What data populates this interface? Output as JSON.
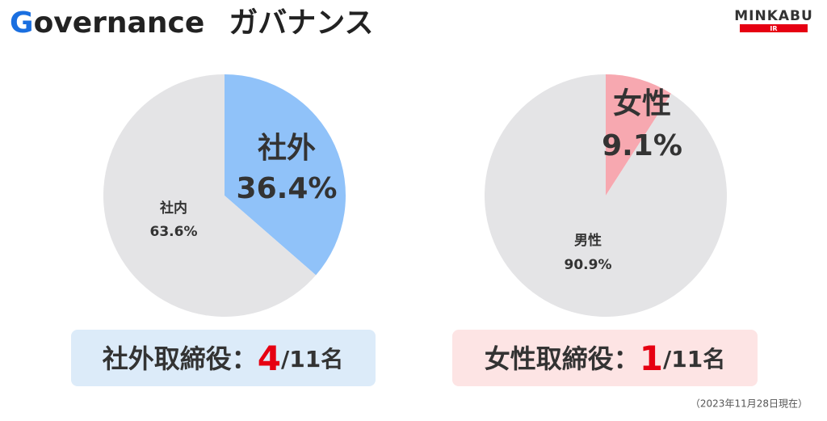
{
  "header": {
    "title_initial": "G",
    "title_rest": "overnance",
    "subtitle": "ガバナンス",
    "logo": "MINKABU",
    "logo_sub": "IR"
  },
  "chart_data": [
    {
      "type": "pie",
      "categories": [
        "社外",
        "社内"
      ],
      "values": [
        36.4,
        63.6
      ],
      "value_labels": [
        "36.4%",
        "63.6%"
      ],
      "colors": [
        "#90c2f9",
        "#e4e4e6"
      ],
      "caption": {
        "text": "社外取締役：",
        "count": 4,
        "unit": "/11名"
      }
    },
    {
      "type": "pie",
      "categories": [
        "女性",
        "男性"
      ],
      "values": [
        9.1,
        90.9
      ],
      "value_labels": [
        "9.1%",
        "90.9%"
      ],
      "colors": [
        "#f7a8b0",
        "#e4e4e6"
      ],
      "caption": {
        "text": "女性取締役：",
        "count": 1,
        "unit": "/11名"
      }
    }
  ],
  "footnote": "（2023年11月28日現在）"
}
